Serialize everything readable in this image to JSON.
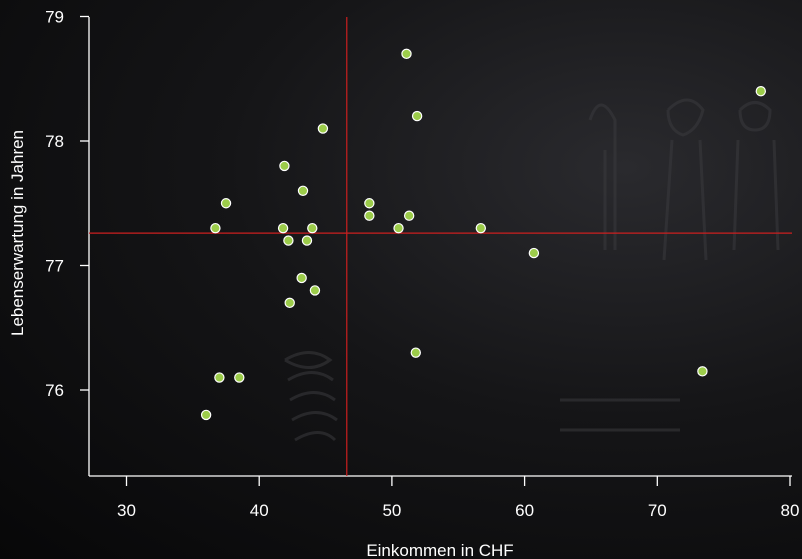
{
  "chart_data": {
    "type": "scatter",
    "title": "",
    "xlabel": "Einkommen in CHF",
    "ylabel": "Lebenserwartung in Jahren",
    "xlim": [
      27,
      80
    ],
    "ylim": [
      75.3,
      79
    ],
    "xticks": [
      "30",
      "40",
      "50",
      "60",
      "70",
      "80"
    ],
    "yticks": [
      "76",
      "77",
      "78",
      "79"
    ],
    "grid": false,
    "mean_x": 46.6,
    "mean_y": 77.26,
    "point_color": "#9ccc4a",
    "line_color": "#cc1f1f",
    "points": [
      {
        "x": 36.0,
        "y": 75.8
      },
      {
        "x": 36.7,
        "y": 77.3
      },
      {
        "x": 37.0,
        "y": 76.1
      },
      {
        "x": 37.5,
        "y": 77.5
      },
      {
        "x": 38.5,
        "y": 76.1
      },
      {
        "x": 41.8,
        "y": 77.3
      },
      {
        "x": 41.9,
        "y": 77.8
      },
      {
        "x": 42.2,
        "y": 77.2
      },
      {
        "x": 42.3,
        "y": 76.7
      },
      {
        "x": 43.2,
        "y": 76.9
      },
      {
        "x": 43.3,
        "y": 77.6
      },
      {
        "x": 43.6,
        "y": 77.2
      },
      {
        "x": 44.0,
        "y": 77.3
      },
      {
        "x": 44.2,
        "y": 76.8
      },
      {
        "x": 44.8,
        "y": 78.1
      },
      {
        "x": 48.3,
        "y": 77.5
      },
      {
        "x": 48.3,
        "y": 77.4
      },
      {
        "x": 50.5,
        "y": 77.3
      },
      {
        "x": 51.1,
        "y": 78.7
      },
      {
        "x": 51.3,
        "y": 77.4
      },
      {
        "x": 51.8,
        "y": 76.3
      },
      {
        "x": 51.9,
        "y": 78.2
      },
      {
        "x": 56.7,
        "y": 77.3
      },
      {
        "x": 60.7,
        "y": 77.1
      },
      {
        "x": 73.4,
        "y": 76.15
      },
      {
        "x": 77.8,
        "y": 78.4
      }
    ]
  }
}
